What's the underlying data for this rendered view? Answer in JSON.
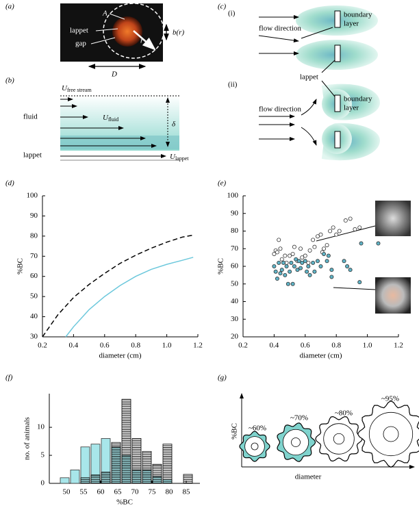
{
  "panel_a": {
    "letter": "(a)",
    "area": "A",
    "lappet": "lappet",
    "gap": "gap",
    "radius": "r",
    "gap_width": "b(r)",
    "diameter": "D"
  },
  "panel_b": {
    "letter": "(b)",
    "free_stream": {
      "symbol": "U",
      "subscript": "free stream"
    },
    "fluid": "fluid",
    "fluid_velocity": {
      "symbol": "U",
      "subscript": "fluid"
    },
    "thickness": "δ",
    "lappet": "lappet",
    "lappet_velocity": {
      "symbol": "U",
      "subscript": "lappet"
    }
  },
  "panel_c": {
    "letter": "(c)",
    "cases": [
      {
        "label": "(i)",
        "flow": "flow direction",
        "boundary": [
          "boundary",
          "layer"
        ]
      },
      {
        "label": "(ii)",
        "flow": "flow direction",
        "boundary": [
          "boundary",
          "layer"
        ]
      }
    ],
    "lappet": "lappet"
  },
  "chart_data": [
    {
      "type": "line",
      "panel_label": "(d)",
      "x_label": "diameter (cm)",
      "y_label": "%BC",
      "xlim": [
        0.2,
        1.2
      ],
      "ylim": [
        30,
        100
      ],
      "xticks": [
        0.2,
        0.4,
        0.6,
        0.8,
        {
          "value": 1,
          "label": "1.0"
        },
        1.2
      ],
      "yticks": [
        30,
        40,
        50,
        60,
        70,
        80,
        90,
        100
      ],
      "series": [
        {
          "color": "#000000",
          "line_style": "dashed",
          "x": [
            0.2,
            0.3,
            0.4,
            0.5,
            0.6,
            0.7,
            0.8,
            0.9,
            1.0,
            1.1,
            1.17
          ],
          "values": [
            30,
            41,
            49.5,
            56,
            61.5,
            66.5,
            70.5,
            74,
            77,
            79.5,
            80.5
          ]
        },
        {
          "color": "#6cc8dc",
          "line_style": "solid",
          "x": [
            0.35,
            0.4,
            0.5,
            0.6,
            0.7,
            0.8,
            0.9,
            1.0,
            1.1,
            1.17
          ],
          "values": [
            30,
            35,
            43.5,
            50,
            55.5,
            60,
            63.5,
            66,
            68,
            69.5
          ]
        }
      ]
    },
    {
      "type": "scatter",
      "panel_label": "(e)",
      "x_label": "diameter (cm)",
      "y_label": "%BC",
      "xlim": [
        0.2,
        1.2
      ],
      "ylim": [
        20,
        100
      ],
      "xticks": [
        0.2,
        0.4,
        0.6,
        0.8,
        {
          "value": 1,
          "label": "1.0"
        },
        1.2
      ],
      "yticks": [
        20,
        30,
        40,
        50,
        60,
        70,
        80,
        90,
        100
      ],
      "series": [
        {
          "color": "#ffffff",
          "x": [
            0.4,
            0.41,
            0.42,
            0.43,
            0.44,
            0.45,
            0.47,
            0.48,
            0.5,
            0.52,
            0.53,
            0.55,
            0.57,
            0.58,
            0.6,
            0.62,
            0.63,
            0.65,
            0.66,
            0.68,
            0.7,
            0.71,
            0.72,
            0.74,
            0.76,
            0.78,
            0.8,
            0.82,
            0.86,
            0.89,
            0.92,
            0.95
          ],
          "values": [
            67,
            69,
            68,
            75,
            70,
            64,
            66,
            62,
            66,
            67,
            71,
            63,
            70,
            65,
            66,
            62,
            69,
            75,
            71,
            77,
            78,
            68,
            70,
            72,
            80,
            82,
            78,
            80,
            86,
            87,
            81,
            82
          ]
        },
        {
          "color": "#5fb3c6",
          "x": [
            0.4,
            0.41,
            0.42,
            0.43,
            0.44,
            0.45,
            0.46,
            0.47,
            0.48,
            0.49,
            0.5,
            0.51,
            0.52,
            0.53,
            0.54,
            0.55,
            0.56,
            0.57,
            0.58,
            0.6,
            0.61,
            0.62,
            0.63,
            0.65,
            0.66,
            0.68,
            0.7,
            0.72,
            0.74,
            0.75,
            0.77,
            0.77,
            0.85,
            0.87,
            0.89,
            0.95,
            0.96,
            1.07
          ],
          "values": [
            60,
            57,
            53,
            62,
            56,
            58,
            62,
            55,
            60,
            50,
            57,
            62,
            50,
            60,
            64,
            58,
            63,
            59,
            62,
            63,
            57,
            60,
            55,
            62,
            57,
            63,
            60,
            67,
            63,
            66,
            58,
            54,
            63,
            60,
            58,
            51,
            73,
            73
          ]
        }
      ]
    },
    {
      "type": "histogram",
      "panel_label": "(f)",
      "x_label": "%BC",
      "y_label": "no. of animals",
      "xlim": [
        45,
        89
      ],
      "ylim": [
        0,
        16
      ],
      "xticks": [
        50,
        55,
        60,
        65,
        70,
        75,
        80,
        85
      ],
      "yticks": [
        0,
        5,
        10
      ],
      "bins": [
        48,
        51,
        54,
        57,
        60,
        63,
        66,
        69,
        72,
        75,
        78,
        81,
        84,
        87
      ],
      "series": [
        {
          "color": "#a8e6ea",
          "pattern": "solid",
          "values": [
            1,
            2.4,
            6.5,
            7,
            8,
            6.5,
            5,
            2.4,
            2.4,
            1.2,
            0.7,
            0,
            0
          ]
        },
        {
          "color": "#000000",
          "pattern": "hatched",
          "values": [
            0,
            0,
            1,
            1.5,
            2,
            7.3,
            15,
            8,
            5.7,
            3.4,
            7,
            0,
            1.6
          ]
        }
      ]
    }
  ],
  "panel_g": {
    "letter": "(g)",
    "y_label": "%BC",
    "x_label": "diameter",
    "stages": [
      "~60%",
      "~70%",
      "~80%",
      "~95%"
    ]
  }
}
